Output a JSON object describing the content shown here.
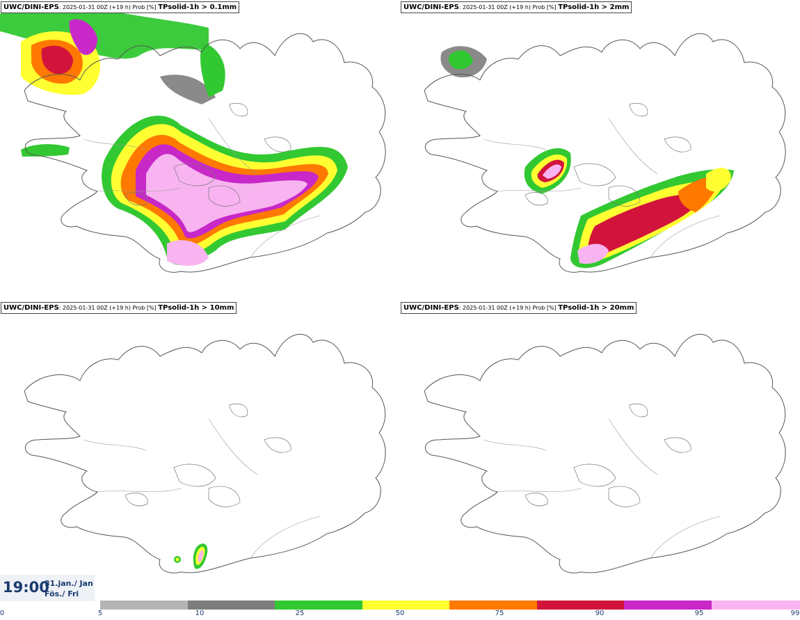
{
  "panels": [
    {
      "model": "UWC/DINI-EPS",
      "meta": ": 2025-01-31 00Z (+19 h) Prob [%] ",
      "param": "TPsolid-1h > 0.1mm"
    },
    {
      "model": "UWC/DINI-EPS",
      "meta": ": 2025-01-31 00Z (+19 h) Prob [%] ",
      "param": "TPsolid-1h > 2mm"
    },
    {
      "model": "UWC/DINI-EPS",
      "meta": ": 2025-01-31 00Z (+19 h) Prob [%] ",
      "param": "TPsolid-1h > 10mm"
    },
    {
      "model": "UWC/DINI-EPS",
      "meta": ": 2025-01-31 00Z (+19 h) Prob [%] ",
      "param": "TPsolid-1h > 20mm"
    }
  ],
  "clock": {
    "time": "19:00",
    "date_line1": "31.jan./ Jan",
    "date_line2": "Fös./ Fri"
  },
  "legend": {
    "ticks": [
      "0",
      "5",
      "10",
      "25",
      "50",
      "75",
      "90",
      "95",
      "99"
    ],
    "colors": [
      "#b4b4b4",
      "#7d7d7d",
      "#32c832",
      "#ffff32",
      "#ff7800",
      "#d2143c",
      "#c828c8",
      "#f8b4f0"
    ]
  }
}
